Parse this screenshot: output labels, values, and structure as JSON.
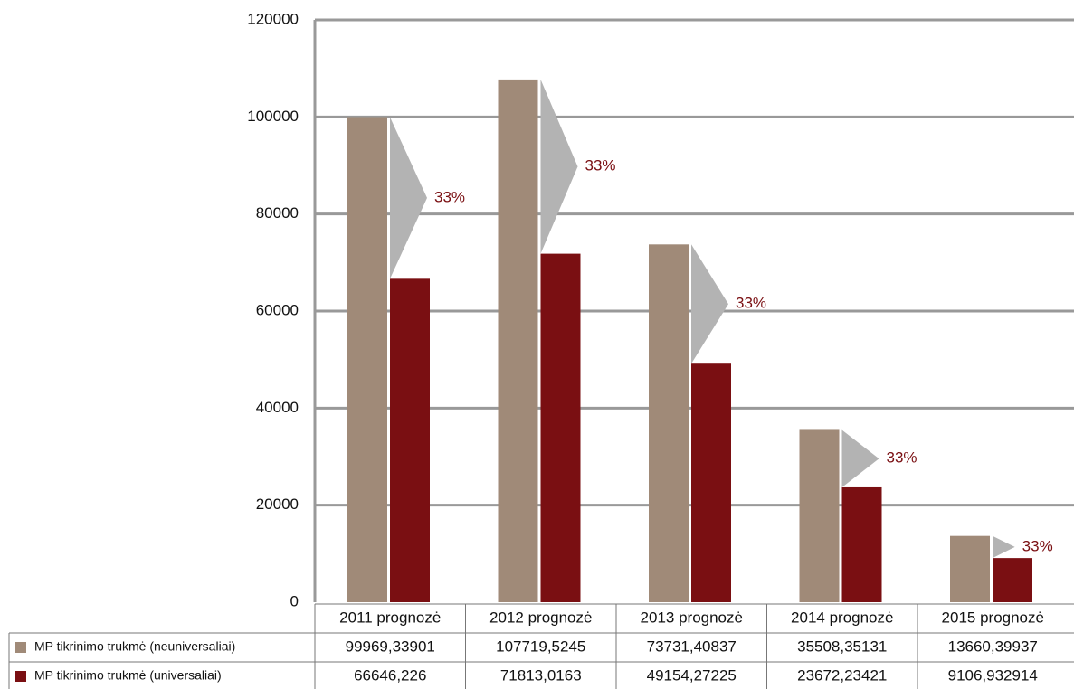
{
  "chart_data": {
    "type": "bar",
    "categories": [
      "2011 prognozė",
      "2012 prognozė",
      "2013 prognozė",
      "2014 prognozė",
      "2015 prognozė"
    ],
    "series": [
      {
        "name": "MP tikrinimo trukmė (neuniversaliai)",
        "color": "#a08a78",
        "values": [
          99969.33901,
          107719.5245,
          73731.40837,
          35508.35131,
          13660.39937
        ],
        "value_labels": [
          "99969,33901",
          "107719,5245",
          "73731,40837",
          "35508,35131",
          "13660,39937"
        ]
      },
      {
        "name": "MP tikrinimo trukmė (universaliai)",
        "color": "#7a0f12",
        "values": [
          66646.226,
          71813.0163,
          49154.27225,
          23672.23421,
          9106.932914
        ],
        "value_labels": [
          "66646,226",
          "71813,0163",
          "49154,27225",
          "23672,23421",
          "9106,932914"
        ]
      }
    ],
    "annotations": [
      "33%",
      "33%",
      "33%",
      "33%",
      "33%"
    ],
    "ylim": [
      0,
      120000
    ],
    "yticks": [
      0,
      20000,
      40000,
      60000,
      80000,
      100000,
      120000
    ],
    "grid": true
  }
}
